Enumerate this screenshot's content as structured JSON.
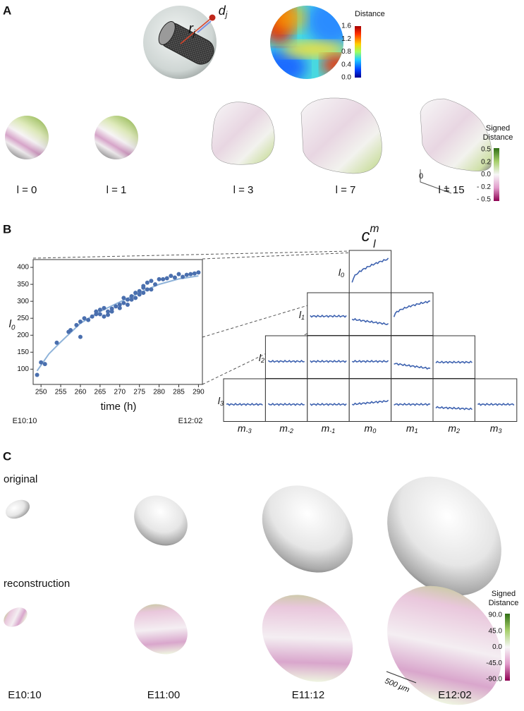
{
  "panels": {
    "a": "A",
    "b": "B",
    "c": "C"
  },
  "panel_a": {
    "r_label": {
      "base": "r",
      "sub": "j"
    },
    "d_label": {
      "base": "d",
      "sub": "j"
    },
    "colorbar": {
      "title": "Distance",
      "ticks": [
        "1.6",
        "1.2",
        "0.8",
        "0.4",
        "0.0"
      ]
    },
    "degree_labels": [
      "l = 0",
      "l = 1",
      "l = 3",
      "l = 7",
      "l = 15"
    ],
    "scale_labels": [
      "0",
      "1"
    ],
    "signed_colorbar": {
      "title": "Signed Distance",
      "ticks": [
        "0.5",
        "0.2",
        "0.0",
        "- 0.2",
        "- 0.5"
      ]
    }
  },
  "chart_data": {
    "type": "scatter",
    "ylabel": {
      "base": "l",
      "sub": "0"
    },
    "xlabel": "time (h)",
    "annotations": [
      "E10:10",
      "E12:02"
    ],
    "color": "#4a6fae",
    "x": [
      249,
      250,
      251,
      254,
      257,
      257.5,
      259,
      260,
      260,
      261,
      262,
      263,
      264,
      264,
      265,
      265,
      266,
      266,
      267,
      267,
      268,
      268,
      269,
      270,
      270,
      271,
      271,
      272,
      272,
      273,
      273,
      274,
      274,
      275,
      275,
      276,
      276,
      276,
      277,
      277,
      278,
      278,
      279,
      280,
      281,
      282,
      283,
      284,
      285,
      286,
      287,
      288,
      289,
      290
    ],
    "values": [
      83,
      120,
      115,
      178,
      210,
      215,
      230,
      195,
      240,
      250,
      245,
      255,
      262,
      270,
      275,
      262,
      280,
      255,
      270,
      260,
      270,
      278,
      285,
      280,
      290,
      295,
      310,
      305,
      290,
      315,
      305,
      325,
      310,
      320,
      330,
      340,
      345,
      325,
      355,
      335,
      360,
      335,
      350,
      365,
      365,
      368,
      375,
      370,
      380,
      372,
      378,
      380,
      382,
      385
    ],
    "fit": {
      "color": "#8fb3d9",
      "x": [
        249,
        252,
        255,
        260,
        265,
        270,
        275,
        280,
        285,
        290
      ],
      "values": [
        95,
        145,
        180,
        235,
        270,
        298,
        325,
        350,
        366,
        375
      ]
    },
    "xlim": [
      248,
      291
    ],
    "ylim": [
      55,
      423
    ],
    "xticks": [
      250,
      255,
      260,
      265,
      270,
      275,
      280,
      285,
      290
    ],
    "yticks": [
      100,
      150,
      200,
      250,
      300,
      350,
      400
    ]
  },
  "coefficient_grid": {
    "title": {
      "base": "c",
      "sub": "l",
      "sup": "m"
    },
    "rows": [
      {
        "base": "l",
        "sub": "0"
      },
      {
        "base": "l",
        "sub": "1"
      },
      {
        "base": "l",
        "sub": "2"
      },
      {
        "base": "l",
        "sub": "3"
      }
    ],
    "columns": [
      {
        "base": "m",
        "sub": "-3"
      },
      {
        "base": "m",
        "sub": "-2"
      },
      {
        "base": "m",
        "sub": "-1"
      },
      {
        "base": "m",
        "sub": "0"
      },
      {
        "base": "m",
        "sub": "1"
      },
      {
        "base": "m",
        "sub": "2"
      },
      {
        "base": "m",
        "sub": "3"
      }
    ]
  },
  "panel_c": {
    "row_labels": [
      "original",
      "reconstruction"
    ],
    "times": [
      "E10:10",
      "E11:00",
      "E11:12",
      "E12:02"
    ],
    "colorbar": {
      "title": "Signed Distance",
      "ticks": [
        "90.0",
        "45.0",
        "0.0",
        "-45.0",
        "-90.0"
      ]
    },
    "scale_bar": "500 μm"
  }
}
